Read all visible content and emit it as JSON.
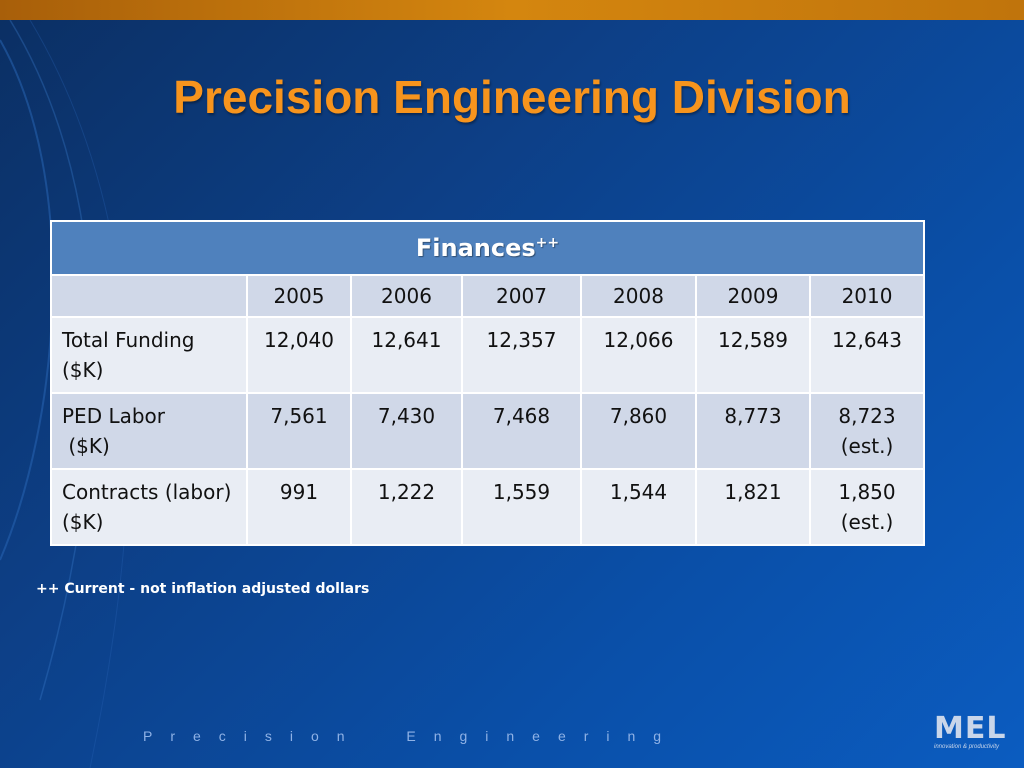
{
  "slide": {
    "title": "Precision Engineering Division",
    "footer": "Precision  Engineering",
    "note": "++ Current - not inflation adjusted dollars"
  },
  "table": {
    "caption": "Finances",
    "caption_superscript": "++",
    "header_blank": "",
    "years": [
      "2005",
      "2006",
      "2007",
      "2008",
      "2009",
      "2010"
    ],
    "rows": [
      {
        "label_line1": "Total Funding",
        "label_line2": "($K)",
        "values": [
          {
            "line1": "12,040",
            "line2": ""
          },
          {
            "line1": "12,641",
            "line2": ""
          },
          {
            "line1": "12,357",
            "line2": ""
          },
          {
            "line1": "12,066",
            "line2": ""
          },
          {
            "line1": "12,589",
            "line2": ""
          },
          {
            "line1": "12,643",
            "line2": ""
          }
        ]
      },
      {
        "label_line1": "PED Labor",
        "label_line2": " ($K)",
        "values": [
          {
            "line1": "7,561",
            "line2": ""
          },
          {
            "line1": "7,430",
            "line2": ""
          },
          {
            "line1": "7,468",
            "line2": ""
          },
          {
            "line1": "7,860",
            "line2": ""
          },
          {
            "line1": "8,773",
            "line2": ""
          },
          {
            "line1": "8,723",
            "line2": "(est.)"
          }
        ]
      },
      {
        "label_line1": "Contracts (labor)",
        "label_line2": "($K)",
        "values": [
          {
            "line1": "991",
            "line2": ""
          },
          {
            "line1": "1,222",
            "line2": ""
          },
          {
            "line1": "1,559",
            "line2": ""
          },
          {
            "line1": "1,544",
            "line2": ""
          },
          {
            "line1": "1,821",
            "line2": ""
          },
          {
            "line1": "1,850",
            "line2": "(est.)"
          }
        ]
      }
    ]
  },
  "logo": {
    "word": "MEL",
    "tagline": "innovation & productivity"
  },
  "colors": {
    "title": "#f7941d",
    "header_fill": "#4f81bd",
    "row_odd": "#d0d8e8",
    "row_even": "#e9edf4",
    "background": "#0d3f86"
  }
}
